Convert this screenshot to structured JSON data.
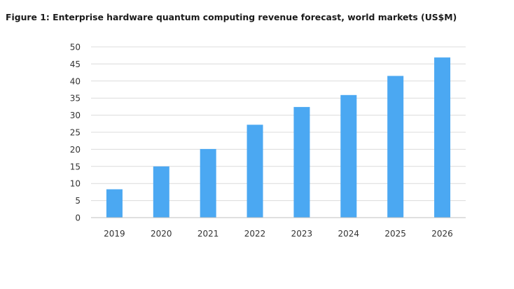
{
  "chart_data": {
    "type": "bar",
    "title": "Figure 1: Enterprise hardware quantum computing revenue forecast, world markets (US$M)",
    "categories": [
      "2019",
      "2020",
      "2021",
      "2022",
      "2023",
      "2024",
      "2025",
      "2026"
    ],
    "values": [
      8.3,
      15.0,
      20.1,
      27.2,
      32.4,
      35.9,
      41.5,
      46.9
    ],
    "xlabel": "",
    "ylabel": "",
    "ylim": [
      0,
      50
    ],
    "yticks": [
      0,
      5,
      10,
      15,
      20,
      25,
      30,
      35,
      40,
      45,
      50
    ],
    "grid": true,
    "legend": "none",
    "bar_color": "#4ba8f2",
    "grid_color": "#dcdcdc",
    "axis_color": "#bfbfbf"
  }
}
